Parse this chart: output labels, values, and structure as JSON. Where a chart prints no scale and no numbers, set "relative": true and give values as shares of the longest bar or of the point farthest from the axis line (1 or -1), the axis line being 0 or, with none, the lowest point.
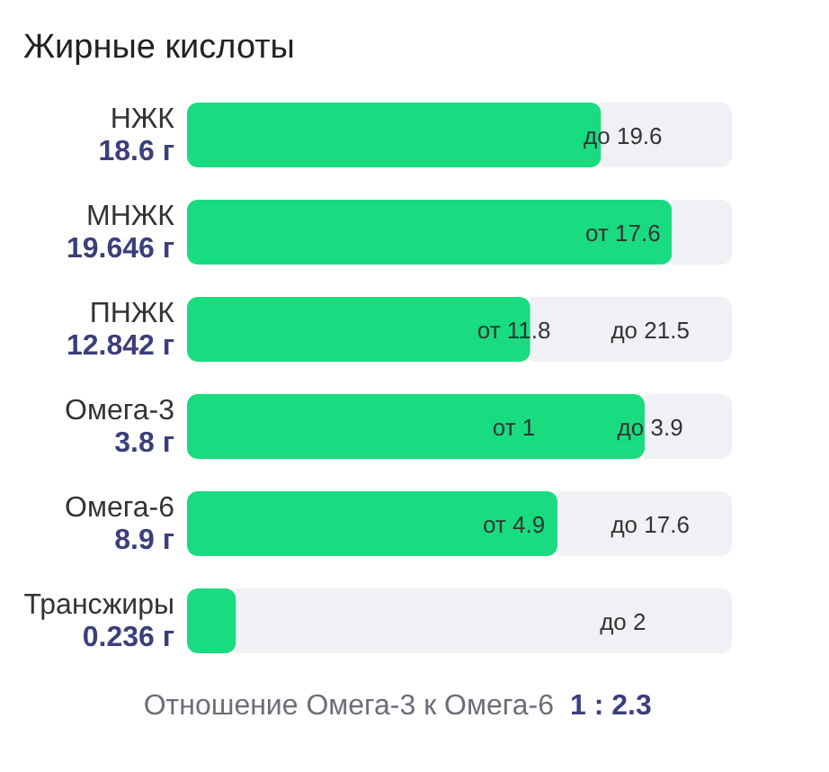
{
  "chart_data": {
    "type": "bar",
    "orientation": "horizontal",
    "stacked": true,
    "relative": true,
    "title": "Жирные кислоты",
    "categories": [
      "НЖК",
      "МНЖК",
      "ПНЖК",
      "Омега-3",
      "Омега-6",
      "Трансжиры"
    ],
    "series": [
      {
        "color": "#19dc80",
        "values": [
          0.76,
          0.89,
          0.63,
          0.84,
          0.68,
          0.09
        ]
      },
      {
        "color": "#f0f1f4",
        "values": [
          0.24,
          0.11,
          0.37,
          0.16,
          0.32,
          0.91
        ]
      }
    ],
    "annotations": [
      "18.6 г",
      "19.646 г",
      "12.842 г",
      "3.8 г",
      "8.9 г",
      "0.236 г",
      {
        "text": "до 19.6",
        "x": 0.8,
        "y": "НЖК"
      },
      {
        "text": "от 17.6",
        "x": 0.8,
        "y": "МНЖК"
      },
      {
        "text": "от 11.8",
        "x": 0.6,
        "y": "ПНЖК"
      },
      {
        "text": "до 21.5",
        "x": 0.85,
        "y": "ПНЖК"
      },
      {
        "text": "от 1",
        "x": 0.6,
        "y": "Омега-3"
      },
      {
        "text": "до 3.9",
        "x": 0.85,
        "y": "Омега-3"
      },
      {
        "text": "от 4.9",
        "x": 0.6,
        "y": "Омега-6"
      },
      {
        "text": "до 17.6",
        "x": 0.85,
        "y": "Омега-6"
      },
      {
        "text": "до 2",
        "x": 0.8,
        "y": "Трансжиры"
      },
      "Отношение Омега-3 к Омега-6",
      "1 : 2.3"
    ]
  }
}
